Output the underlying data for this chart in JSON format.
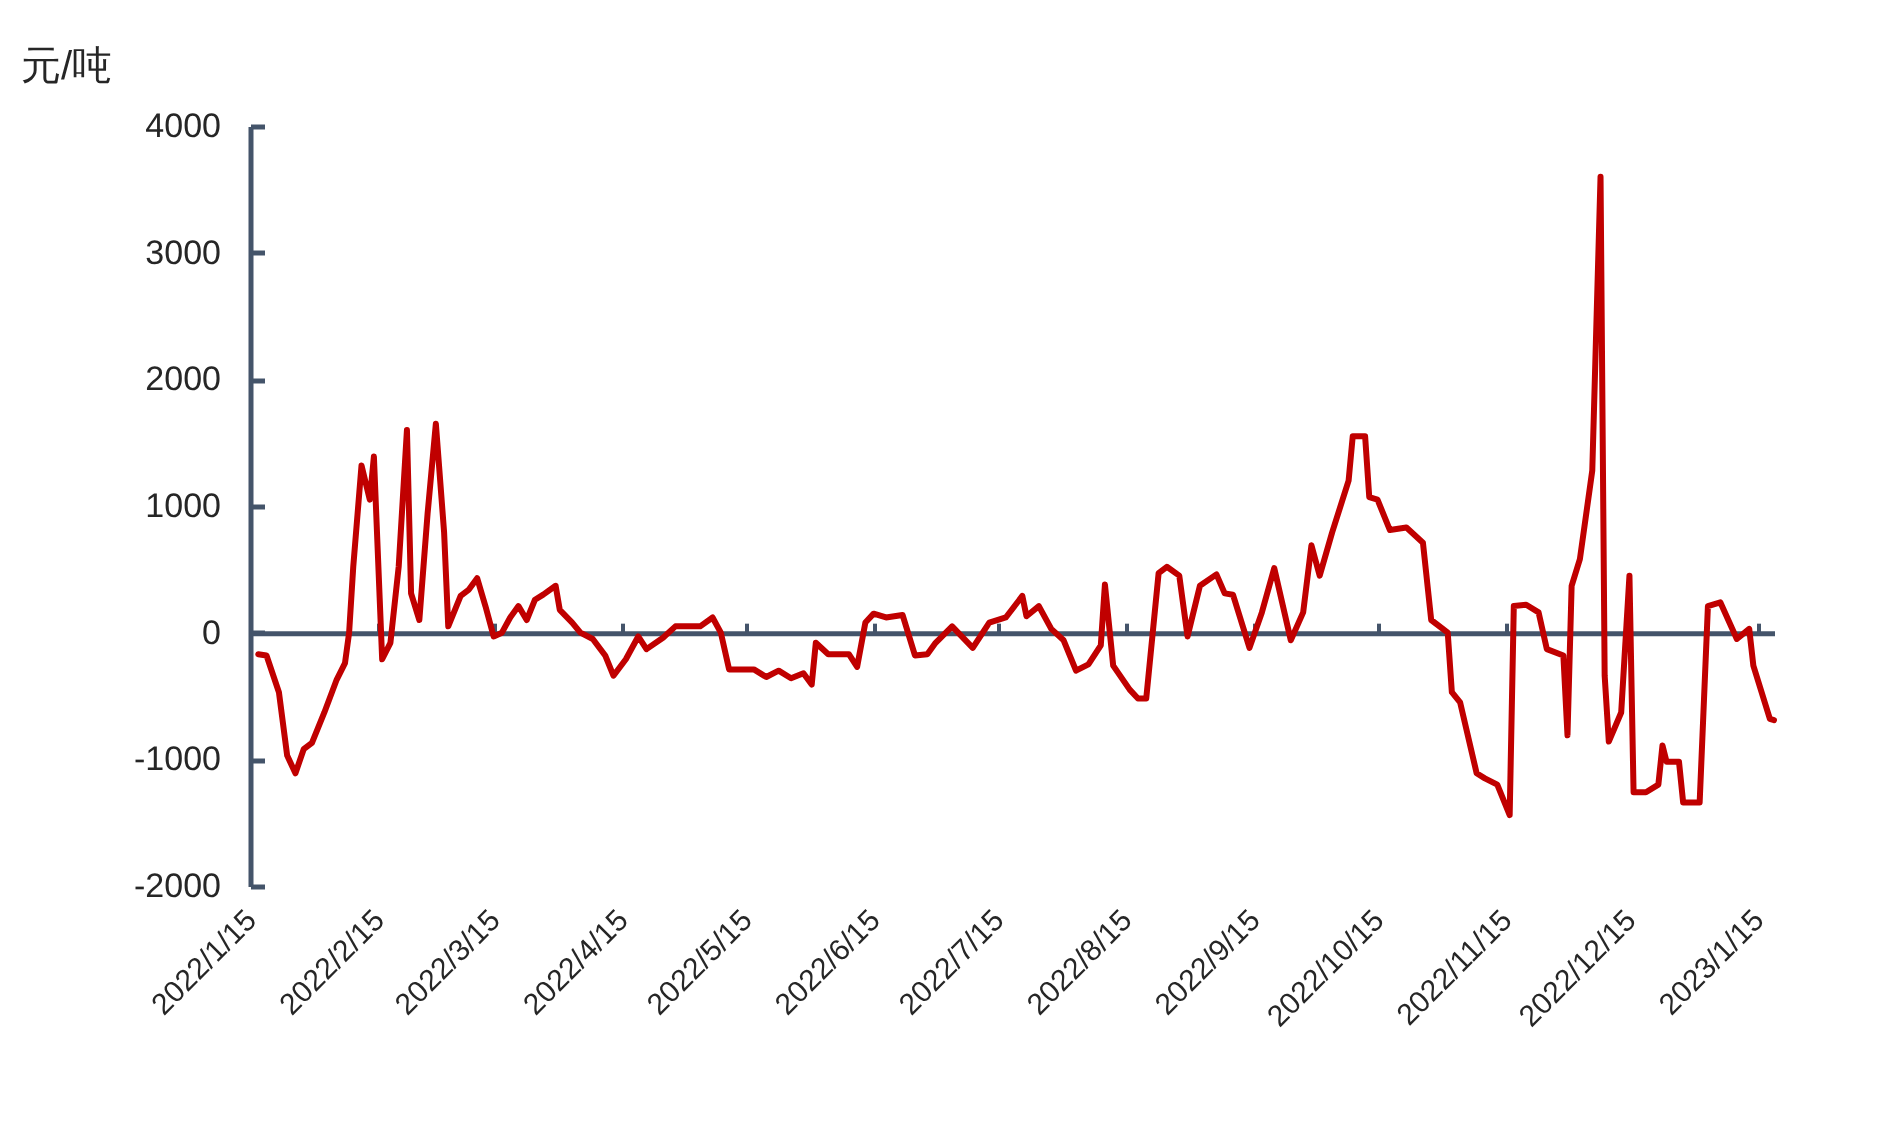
{
  "chart_data": {
    "type": "line",
    "ylabel": "元/吨",
    "x": [
      "2022-01-17",
      "2022-01-19",
      "2022-01-22",
      "2022-01-24",
      "2022-01-26",
      "2022-01-28",
      "2022-01-30",
      "2022-02-02",
      "2022-02-05",
      "2022-02-07",
      "2022-02-08",
      "2022-02-09",
      "2022-02-11",
      "2022-02-13",
      "2022-02-14",
      "2022-02-16",
      "2022-02-18",
      "2022-02-20",
      "2022-02-22",
      "2022-02-23",
      "2022-02-25",
      "2022-02-27",
      "2022-03-01",
      "2022-03-03",
      "2022-03-04",
      "2022-03-07",
      "2022-03-09",
      "2022-03-11",
      "2022-03-13",
      "2022-03-15",
      "2022-03-17",
      "2022-03-19",
      "2022-03-21",
      "2022-03-23",
      "2022-03-25",
      "2022-03-27",
      "2022-03-30",
      "2022-03-31",
      "2022-04-03",
      "2022-04-05",
      "2022-04-08",
      "2022-04-11",
      "2022-04-13",
      "2022-04-16",
      "2022-04-19",
      "2022-04-21",
      "2022-04-25",
      "2022-04-28",
      "2022-05-04",
      "2022-05-07",
      "2022-05-09",
      "2022-05-11",
      "2022-05-17",
      "2022-05-20",
      "2022-05-23",
      "2022-05-26",
      "2022-05-29",
      "2022-05-31",
      "2022-06-01",
      "2022-06-04",
      "2022-06-09",
      "2022-06-11",
      "2022-06-13",
      "2022-06-15",
      "2022-06-18",
      "2022-06-22",
      "2022-06-25",
      "2022-06-28",
      "2022-06-30",
      "2022-07-04",
      "2022-07-09",
      "2022-07-13",
      "2022-07-17",
      "2022-07-21",
      "2022-07-22",
      "2022-07-25",
      "2022-07-28",
      "2022-07-31",
      "2022-08-03",
      "2022-08-06",
      "2022-08-09",
      "2022-08-10",
      "2022-08-12",
      "2022-08-16",
      "2022-08-18",
      "2022-08-20",
      "2022-08-23",
      "2022-08-25",
      "2022-08-28",
      "2022-08-30",
      "2022-09-02",
      "2022-09-06",
      "2022-09-08",
      "2022-09-10",
      "2022-09-14",
      "2022-09-17",
      "2022-09-20",
      "2022-09-24",
      "2022-09-27",
      "2022-09-29",
      "2022-10-01",
      "2022-10-04",
      "2022-10-08",
      "2022-10-09",
      "2022-10-12",
      "2022-10-13",
      "2022-10-15",
      "2022-10-18",
      "2022-10-22",
      "2022-10-26",
      "2022-10-28",
      "2022-11-01",
      "2022-11-02",
      "2022-11-04",
      "2022-11-08",
      "2022-11-10",
      "2022-11-13",
      "2022-11-16",
      "2022-11-17",
      "2022-11-20",
      "2022-11-23",
      "2022-11-25",
      "2022-11-29",
      "2022-11-30",
      "2022-12-01",
      "2022-12-03",
      "2022-12-06",
      "2022-12-08",
      "2022-12-09",
      "2022-12-10",
      "2022-12-13",
      "2022-12-15",
      "2022-12-16",
      "2022-12-19",
      "2022-12-22",
      "2022-12-23",
      "2022-12-24",
      "2022-12-27",
      "2022-12-28",
      "2023-01-01",
      "2023-01-03",
      "2023-01-06",
      "2023-01-10",
      "2023-01-13",
      "2023-01-14",
      "2023-01-18",
      "2023-01-19"
    ],
    "series": [
      {
        "color": "#c00000",
        "values": [
          -170,
          -180,
          -470,
          -970,
          -1110,
          -920,
          -870,
          -630,
          -370,
          -240,
          0,
          520,
          1320,
          1050,
          1390,
          -210,
          -80,
          520,
          1600,
          310,
          100,
          940,
          1650,
          790,
          50,
          290,
          340,
          430,
          210,
          -30,
          0,
          120,
          210,
          100,
          260,
          300,
          370,
          180,
          80,
          0,
          -50,
          -180,
          -340,
          -210,
          -30,
          -130,
          -40,
          50,
          50,
          120,
          0,
          -290,
          -290,
          -350,
          -300,
          -360,
          -320,
          -410,
          -80,
          -170,
          -170,
          -270,
          80,
          150,
          120,
          140,
          -180,
          -170,
          -80,
          50,
          -120,
          80,
          120,
          290,
          130,
          210,
          30,
          -60,
          -300,
          -250,
          -100,
          380,
          -260,
          -450,
          -520,
          -520,
          470,
          520,
          450,
          -30,
          370,
          460,
          310,
          300,
          -120,
          160,
          510,
          -60,
          160,
          690,
          450,
          790,
          1200,
          1550,
          1550,
          1070,
          1050,
          810,
          830,
          710,
          100,
          0,
          -470,
          -550,
          -1110,
          -1150,
          -1200,
          -1440,
          210,
          220,
          160,
          -130,
          -180,
          -810,
          370,
          580,
          1280,
          3600,
          -340,
          -860,
          -630,
          450,
          -1260,
          -1260,
          -1200,
          -890,
          -1020,
          -1020,
          -1340,
          -1340,
          210,
          240,
          -50,
          30,
          -260,
          -680,
          -690
        ]
      }
    ],
    "xlim": [
      "2022-01-15",
      "2023-01-19"
    ],
    "xticks": [
      {
        "value": "2022-01-15",
        "label": "2022/1/15"
      },
      {
        "value": "2022-02-15",
        "label": "2022/2/15"
      },
      {
        "value": "2022-03-15",
        "label": "2022/3/15"
      },
      {
        "value": "2022-04-15",
        "label": "2022/4/15"
      },
      {
        "value": "2022-05-15",
        "label": "2022/5/15"
      },
      {
        "value": "2022-06-15",
        "label": "2022/6/15"
      },
      {
        "value": "2022-07-15",
        "label": "2022/7/15"
      },
      {
        "value": "2022-08-15",
        "label": "2022/8/15"
      },
      {
        "value": "2022-09-15",
        "label": "2022/9/15"
      },
      {
        "value": "2022-10-15",
        "label": "2022/10/15"
      },
      {
        "value": "2022-11-15",
        "label": "2022/11/15"
      },
      {
        "value": "2022-12-15",
        "label": "2022/12/15"
      },
      {
        "value": "2023-01-15",
        "label": "2023/1/15"
      }
    ],
    "ylim": [
      -2000,
      4000
    ],
    "yticks": [
      -2000,
      -1000,
      0,
      1000,
      2000,
      3000,
      4000
    ],
    "line_style": "solid"
  }
}
